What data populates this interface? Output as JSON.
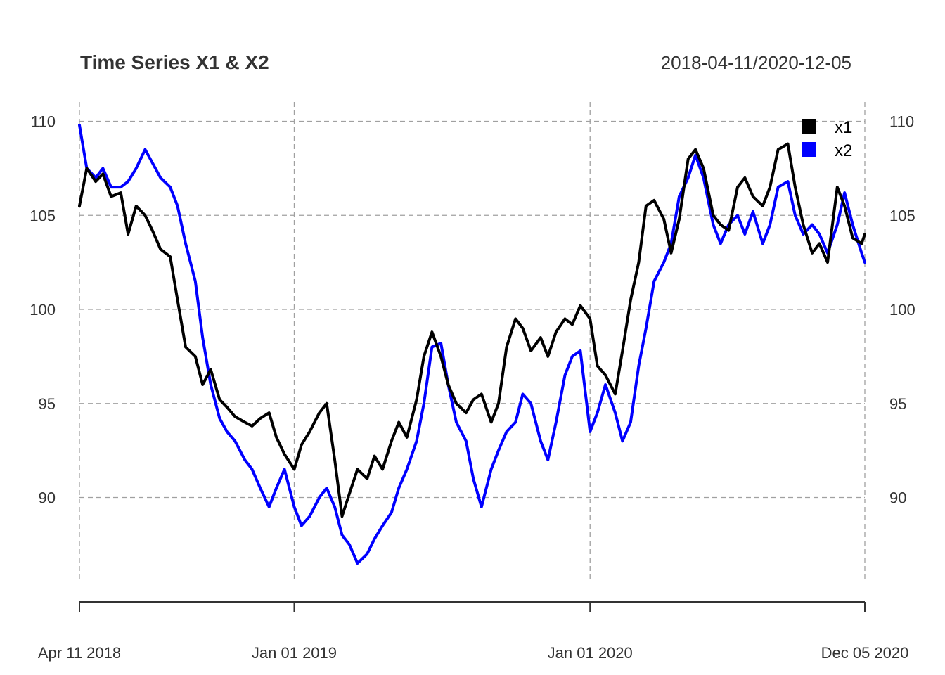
{
  "chart_data": {
    "type": "line",
    "title": "Time Series X1 & X2",
    "subtitle": "2018-04-11/2020-12-05",
    "x_start": "2018-04-11",
    "x_end": "2020-12-05",
    "x_ticks": [
      {
        "date": "2018-04-11",
        "label": "Apr 11 2018"
      },
      {
        "date": "2019-01-01",
        "label": "Jan 01 2019"
      },
      {
        "date": "2020-01-01",
        "label": "Jan 01 2020"
      },
      {
        "date": "2020-12-05",
        "label": "Dec 05 2020"
      }
    ],
    "y_ticks": [
      90,
      95,
      100,
      105,
      110
    ],
    "ylim": [
      85.6,
      111.2
    ],
    "grid": true,
    "legend_position": "top-right",
    "series": [
      {
        "name": "x1",
        "color": "#000000",
        "points": [
          [
            "2018-04-11",
            105.5
          ],
          [
            "2018-04-20",
            107.5
          ],
          [
            "2018-05-01",
            106.8
          ],
          [
            "2018-05-10",
            107.2
          ],
          [
            "2018-05-20",
            106.0
          ],
          [
            "2018-06-01",
            106.2
          ],
          [
            "2018-06-10",
            104.0
          ],
          [
            "2018-06-20",
            105.5
          ],
          [
            "2018-07-01",
            105.0
          ],
          [
            "2018-07-10",
            104.2
          ],
          [
            "2018-07-20",
            103.2
          ],
          [
            "2018-08-01",
            102.8
          ],
          [
            "2018-08-10",
            100.5
          ],
          [
            "2018-08-20",
            98.0
          ],
          [
            "2018-09-01",
            97.5
          ],
          [
            "2018-09-10",
            96.0
          ],
          [
            "2018-09-20",
            96.8
          ],
          [
            "2018-10-01",
            95.2
          ],
          [
            "2018-10-10",
            94.8
          ],
          [
            "2018-10-20",
            94.3
          ],
          [
            "2018-11-01",
            94.0
          ],
          [
            "2018-11-10",
            93.8
          ],
          [
            "2018-11-20",
            94.2
          ],
          [
            "2018-12-01",
            94.5
          ],
          [
            "2018-12-10",
            93.2
          ],
          [
            "2018-12-20",
            92.3
          ],
          [
            "2019-01-01",
            91.5
          ],
          [
            "2019-01-10",
            92.8
          ],
          [
            "2019-01-20",
            93.5
          ],
          [
            "2019-02-01",
            94.5
          ],
          [
            "2019-02-10",
            95.0
          ],
          [
            "2019-02-20",
            92.0
          ],
          [
            "2019-03-01",
            89.0
          ],
          [
            "2019-03-10",
            90.2
          ],
          [
            "2019-03-20",
            91.5
          ],
          [
            "2019-04-01",
            91.0
          ],
          [
            "2019-04-10",
            92.2
          ],
          [
            "2019-04-20",
            91.5
          ],
          [
            "2019-05-01",
            93.0
          ],
          [
            "2019-05-10",
            94.0
          ],
          [
            "2019-05-20",
            93.2
          ],
          [
            "2019-06-01",
            95.2
          ],
          [
            "2019-06-10",
            97.5
          ],
          [
            "2019-06-20",
            98.8
          ],
          [
            "2019-07-01",
            97.5
          ],
          [
            "2019-07-10",
            96.0
          ],
          [
            "2019-07-20",
            95.0
          ],
          [
            "2019-08-01",
            94.5
          ],
          [
            "2019-08-10",
            95.2
          ],
          [
            "2019-08-20",
            95.5
          ],
          [
            "2019-09-01",
            94.0
          ],
          [
            "2019-09-10",
            95.0
          ],
          [
            "2019-09-20",
            98.0
          ],
          [
            "2019-10-01",
            99.5
          ],
          [
            "2019-10-10",
            99.0
          ],
          [
            "2019-10-20",
            97.8
          ],
          [
            "2019-11-01",
            98.5
          ],
          [
            "2019-11-10",
            97.5
          ],
          [
            "2019-11-20",
            98.8
          ],
          [
            "2019-12-01",
            99.5
          ],
          [
            "2019-12-10",
            99.2
          ],
          [
            "2019-12-20",
            100.2
          ],
          [
            "2020-01-01",
            99.5
          ],
          [
            "2020-01-10",
            97.0
          ],
          [
            "2020-01-20",
            96.5
          ],
          [
            "2020-02-01",
            95.5
          ],
          [
            "2020-02-10",
            97.8
          ],
          [
            "2020-02-20",
            100.5
          ],
          [
            "2020-03-01",
            102.5
          ],
          [
            "2020-03-10",
            105.5
          ],
          [
            "2020-03-20",
            105.8
          ],
          [
            "2020-04-01",
            104.8
          ],
          [
            "2020-04-10",
            103.0
          ],
          [
            "2020-04-20",
            104.8
          ],
          [
            "2020-05-01",
            108.0
          ],
          [
            "2020-05-10",
            108.5
          ],
          [
            "2020-05-20",
            107.5
          ],
          [
            "2020-06-01",
            105.0
          ],
          [
            "2020-06-10",
            104.5
          ],
          [
            "2020-06-20",
            104.2
          ],
          [
            "2020-07-01",
            106.5
          ],
          [
            "2020-07-10",
            107.0
          ],
          [
            "2020-07-20",
            106.0
          ],
          [
            "2020-08-01",
            105.5
          ],
          [
            "2020-08-10",
            106.5
          ],
          [
            "2020-08-20",
            108.5
          ],
          [
            "2020-09-01",
            108.8
          ],
          [
            "2020-09-10",
            106.5
          ],
          [
            "2020-09-20",
            104.5
          ],
          [
            "2020-10-01",
            103.0
          ],
          [
            "2020-10-10",
            103.5
          ],
          [
            "2020-10-20",
            102.5
          ],
          [
            "2020-11-01",
            106.5
          ],
          [
            "2020-11-10",
            105.5
          ],
          [
            "2020-11-20",
            103.8
          ],
          [
            "2020-12-01",
            103.5
          ],
          [
            "2020-12-05",
            104.0
          ]
        ]
      },
      {
        "name": "x2",
        "color": "#0000ff",
        "points": [
          [
            "2018-04-11",
            109.8
          ],
          [
            "2018-04-20",
            107.5
          ],
          [
            "2018-05-01",
            107.0
          ],
          [
            "2018-05-10",
            107.5
          ],
          [
            "2018-05-20",
            106.5
          ],
          [
            "2018-06-01",
            106.5
          ],
          [
            "2018-06-10",
            106.8
          ],
          [
            "2018-06-20",
            107.5
          ],
          [
            "2018-07-01",
            108.5
          ],
          [
            "2018-07-10",
            107.8
          ],
          [
            "2018-07-20",
            107.0
          ],
          [
            "2018-08-01",
            106.5
          ],
          [
            "2018-08-10",
            105.5
          ],
          [
            "2018-08-20",
            103.5
          ],
          [
            "2018-09-01",
            101.5
          ],
          [
            "2018-09-10",
            98.5
          ],
          [
            "2018-09-20",
            96.0
          ],
          [
            "2018-10-01",
            94.2
          ],
          [
            "2018-10-10",
            93.5
          ],
          [
            "2018-10-20",
            93.0
          ],
          [
            "2018-11-01",
            92.0
          ],
          [
            "2018-11-10",
            91.5
          ],
          [
            "2018-11-20",
            90.5
          ],
          [
            "2018-12-01",
            89.5
          ],
          [
            "2018-12-10",
            90.5
          ],
          [
            "2018-12-20",
            91.5
          ],
          [
            "2019-01-01",
            89.5
          ],
          [
            "2019-01-10",
            88.5
          ],
          [
            "2019-01-20",
            89.0
          ],
          [
            "2019-02-01",
            90.0
          ],
          [
            "2019-02-10",
            90.5
          ],
          [
            "2019-02-20",
            89.5
          ],
          [
            "2019-03-01",
            88.0
          ],
          [
            "2019-03-10",
            87.5
          ],
          [
            "2019-03-20",
            86.5
          ],
          [
            "2019-04-01",
            87.0
          ],
          [
            "2019-04-10",
            87.8
          ],
          [
            "2019-04-20",
            88.5
          ],
          [
            "2019-05-01",
            89.2
          ],
          [
            "2019-05-10",
            90.5
          ],
          [
            "2019-05-20",
            91.5
          ],
          [
            "2019-06-01",
            93.0
          ],
          [
            "2019-06-10",
            95.0
          ],
          [
            "2019-06-20",
            98.0
          ],
          [
            "2019-07-01",
            98.2
          ],
          [
            "2019-07-10",
            96.0
          ],
          [
            "2019-07-20",
            94.0
          ],
          [
            "2019-08-01",
            93.0
          ],
          [
            "2019-08-10",
            91.0
          ],
          [
            "2019-08-20",
            89.5
          ],
          [
            "2019-09-01",
            91.5
          ],
          [
            "2019-09-10",
            92.5
          ],
          [
            "2019-09-20",
            93.5
          ],
          [
            "2019-10-01",
            94.0
          ],
          [
            "2019-10-10",
            95.5
          ],
          [
            "2019-10-20",
            95.0
          ],
          [
            "2019-11-01",
            93.0
          ],
          [
            "2019-11-10",
            92.0
          ],
          [
            "2019-11-20",
            94.0
          ],
          [
            "2019-12-01",
            96.5
          ],
          [
            "2019-12-10",
            97.5
          ],
          [
            "2019-12-20",
            97.8
          ],
          [
            "2020-01-01",
            93.5
          ],
          [
            "2020-01-10",
            94.5
          ],
          [
            "2020-01-20",
            96.0
          ],
          [
            "2020-02-01",
            94.5
          ],
          [
            "2020-02-10",
            93.0
          ],
          [
            "2020-02-20",
            94.0
          ],
          [
            "2020-03-01",
            97.0
          ],
          [
            "2020-03-10",
            99.0
          ],
          [
            "2020-03-20",
            101.5
          ],
          [
            "2020-04-01",
            102.5
          ],
          [
            "2020-04-10",
            103.5
          ],
          [
            "2020-04-20",
            106.0
          ],
          [
            "2020-05-01",
            107.0
          ],
          [
            "2020-05-10",
            108.2
          ],
          [
            "2020-05-20",
            107.0
          ],
          [
            "2020-06-01",
            104.5
          ],
          [
            "2020-06-10",
            103.5
          ],
          [
            "2020-06-20",
            104.5
          ],
          [
            "2020-07-01",
            105.0
          ],
          [
            "2020-07-10",
            104.0
          ],
          [
            "2020-07-20",
            105.2
          ],
          [
            "2020-08-01",
            103.5
          ],
          [
            "2020-08-10",
            104.5
          ],
          [
            "2020-08-20",
            106.5
          ],
          [
            "2020-09-01",
            106.8
          ],
          [
            "2020-09-10",
            105.0
          ],
          [
            "2020-09-20",
            104.0
          ],
          [
            "2020-10-01",
            104.5
          ],
          [
            "2020-10-10",
            104.0
          ],
          [
            "2020-10-20",
            103.0
          ],
          [
            "2020-11-01",
            104.5
          ],
          [
            "2020-11-10",
            106.2
          ],
          [
            "2020-11-20",
            104.5
          ],
          [
            "2020-12-01",
            103.0
          ],
          [
            "2020-12-05",
            102.5
          ]
        ]
      }
    ]
  }
}
